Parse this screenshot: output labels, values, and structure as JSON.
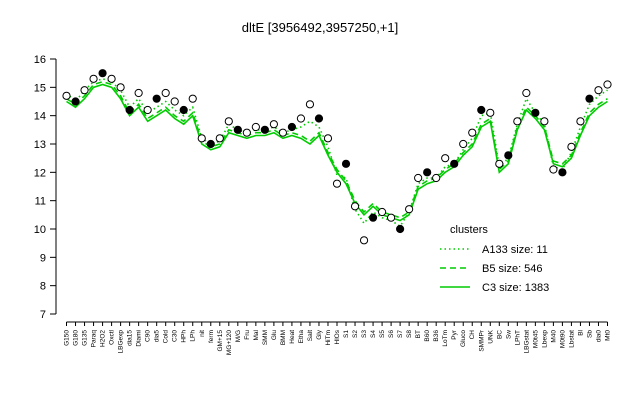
{
  "chart_data": {
    "type": "line",
    "title": "dltE [3956492,3957250,+1]",
    "categories": [
      "G150",
      "G180",
      "G135",
      "Paraq",
      "H2O2",
      "Oxctl",
      "LBGexp",
      "dia15",
      "Diami",
      "C90",
      "dia5",
      "Cold",
      "C30",
      "HPh",
      "LPh",
      "nit",
      "ferm",
      "GM+15",
      "MG+120",
      "M/G",
      "Fru",
      "Mal",
      "SMM",
      "Glu",
      "BMM",
      "Heat",
      "Etha",
      "Salt",
      "Gly",
      "HiTm",
      "HlOs",
      "S1",
      "S2",
      "S3",
      "S4",
      "S5",
      "S6",
      "S7",
      "S8",
      "BT",
      "B60",
      "B36",
      "LoTm",
      "Pyr",
      "Gluco",
      "CH",
      "SMMPr",
      "UNK",
      "BC",
      "Sw",
      "LPhT",
      "LBGstat",
      "M0t45",
      "Lbexp",
      "M40",
      "M0t90",
      "Lbstat",
      "Bl",
      "Sb",
      "dia0",
      "Mt0"
    ],
    "legend_title": "clusters",
    "series": [
      {
        "name": "A133 size: 11",
        "color": "#00cc00",
        "style": "dotted",
        "values": [
          14.8,
          14.5,
          14.9,
          15.2,
          15.3,
          15.2,
          14.9,
          14.3,
          14.6,
          14.1,
          14.3,
          14.5,
          14.2,
          14.0,
          14.3,
          13.2,
          13.0,
          13.1,
          13.7,
          13.5,
          13.4,
          13.5,
          13.5,
          13.6,
          13.4,
          13.5,
          13.6,
          13.8,
          13.6,
          12.9,
          11.9,
          11.8,
          10.7,
          10.2,
          10.6,
          10.4,
          10.3,
          10.1,
          10.6,
          11.6,
          11.8,
          11.8,
          12.2,
          12.3,
          12.8,
          13.2,
          14.0,
          14.1,
          12.2,
          12.5,
          13.7,
          14.6,
          14.1,
          13.7,
          12.2,
          12.1,
          12.7,
          13.6,
          14.4,
          14.7,
          14.9
        ]
      },
      {
        "name": "B5 size: 546",
        "color": "#00cc00",
        "style": "dashed",
        "values": [
          14.6,
          14.4,
          14.7,
          15.1,
          15.2,
          15.1,
          14.7,
          14.1,
          14.4,
          13.9,
          14.1,
          14.3,
          14.0,
          13.8,
          14.1,
          13.1,
          12.9,
          13.0,
          13.5,
          13.4,
          13.3,
          13.4,
          13.4,
          13.5,
          13.3,
          13.4,
          13.3,
          13.1,
          13.4,
          12.7,
          12.1,
          11.7,
          11.0,
          10.6,
          10.9,
          10.6,
          10.5,
          10.4,
          10.6,
          11.5,
          11.7,
          11.8,
          12.1,
          12.3,
          12.7,
          13.0,
          13.7,
          13.9,
          12.1,
          12.4,
          13.6,
          14.3,
          14.0,
          13.6,
          12.4,
          12.3,
          12.6,
          13.4,
          14.1,
          14.4,
          14.6
        ]
      },
      {
        "name": "C3 size: 1383",
        "color": "#00cc00",
        "style": "solid",
        "values": [
          14.5,
          14.3,
          14.6,
          15.0,
          15.1,
          15.0,
          14.6,
          14.0,
          14.3,
          13.8,
          14.0,
          14.2,
          13.9,
          13.7,
          14.0,
          13.0,
          12.8,
          12.9,
          13.4,
          13.3,
          13.2,
          13.3,
          13.3,
          13.4,
          13.2,
          13.3,
          13.2,
          13.0,
          13.3,
          12.6,
          12.0,
          11.6,
          10.9,
          10.5,
          10.8,
          10.5,
          10.4,
          10.3,
          10.5,
          11.4,
          11.6,
          11.7,
          12.0,
          12.2,
          12.6,
          12.9,
          13.6,
          13.8,
          12.0,
          12.3,
          13.5,
          14.2,
          13.9,
          13.5,
          12.3,
          12.2,
          12.5,
          13.3,
          14.0,
          14.3,
          14.5
        ]
      }
    ],
    "points": {
      "color": "#000000",
      "values": [
        14.7,
        14.5,
        14.9,
        15.3,
        15.5,
        15.3,
        15.0,
        14.2,
        14.8,
        14.2,
        14.6,
        14.8,
        14.5,
        14.2,
        14.6,
        13.2,
        13.0,
        13.2,
        13.8,
        13.5,
        13.4,
        13.6,
        13.5,
        13.7,
        13.4,
        13.6,
        13.9,
        14.4,
        13.9,
        13.2,
        11.6,
        12.3,
        10.8,
        9.6,
        10.4,
        10.6,
        10.4,
        10.0,
        10.7,
        11.8,
        12.0,
        11.8,
        12.5,
        12.3,
        13.0,
        13.4,
        14.2,
        14.1,
        12.3,
        12.6,
        13.8,
        14.8,
        14.1,
        13.8,
        12.1,
        12.0,
        12.9,
        13.8,
        14.6,
        14.9,
        15.1
      ]
    },
    "ylim": [
      7,
      16
    ],
    "yticks": [
      7,
      8,
      9,
      10,
      11,
      12,
      13,
      14,
      15,
      16
    ],
    "grid": false,
    "legend": "bottom-right"
  }
}
